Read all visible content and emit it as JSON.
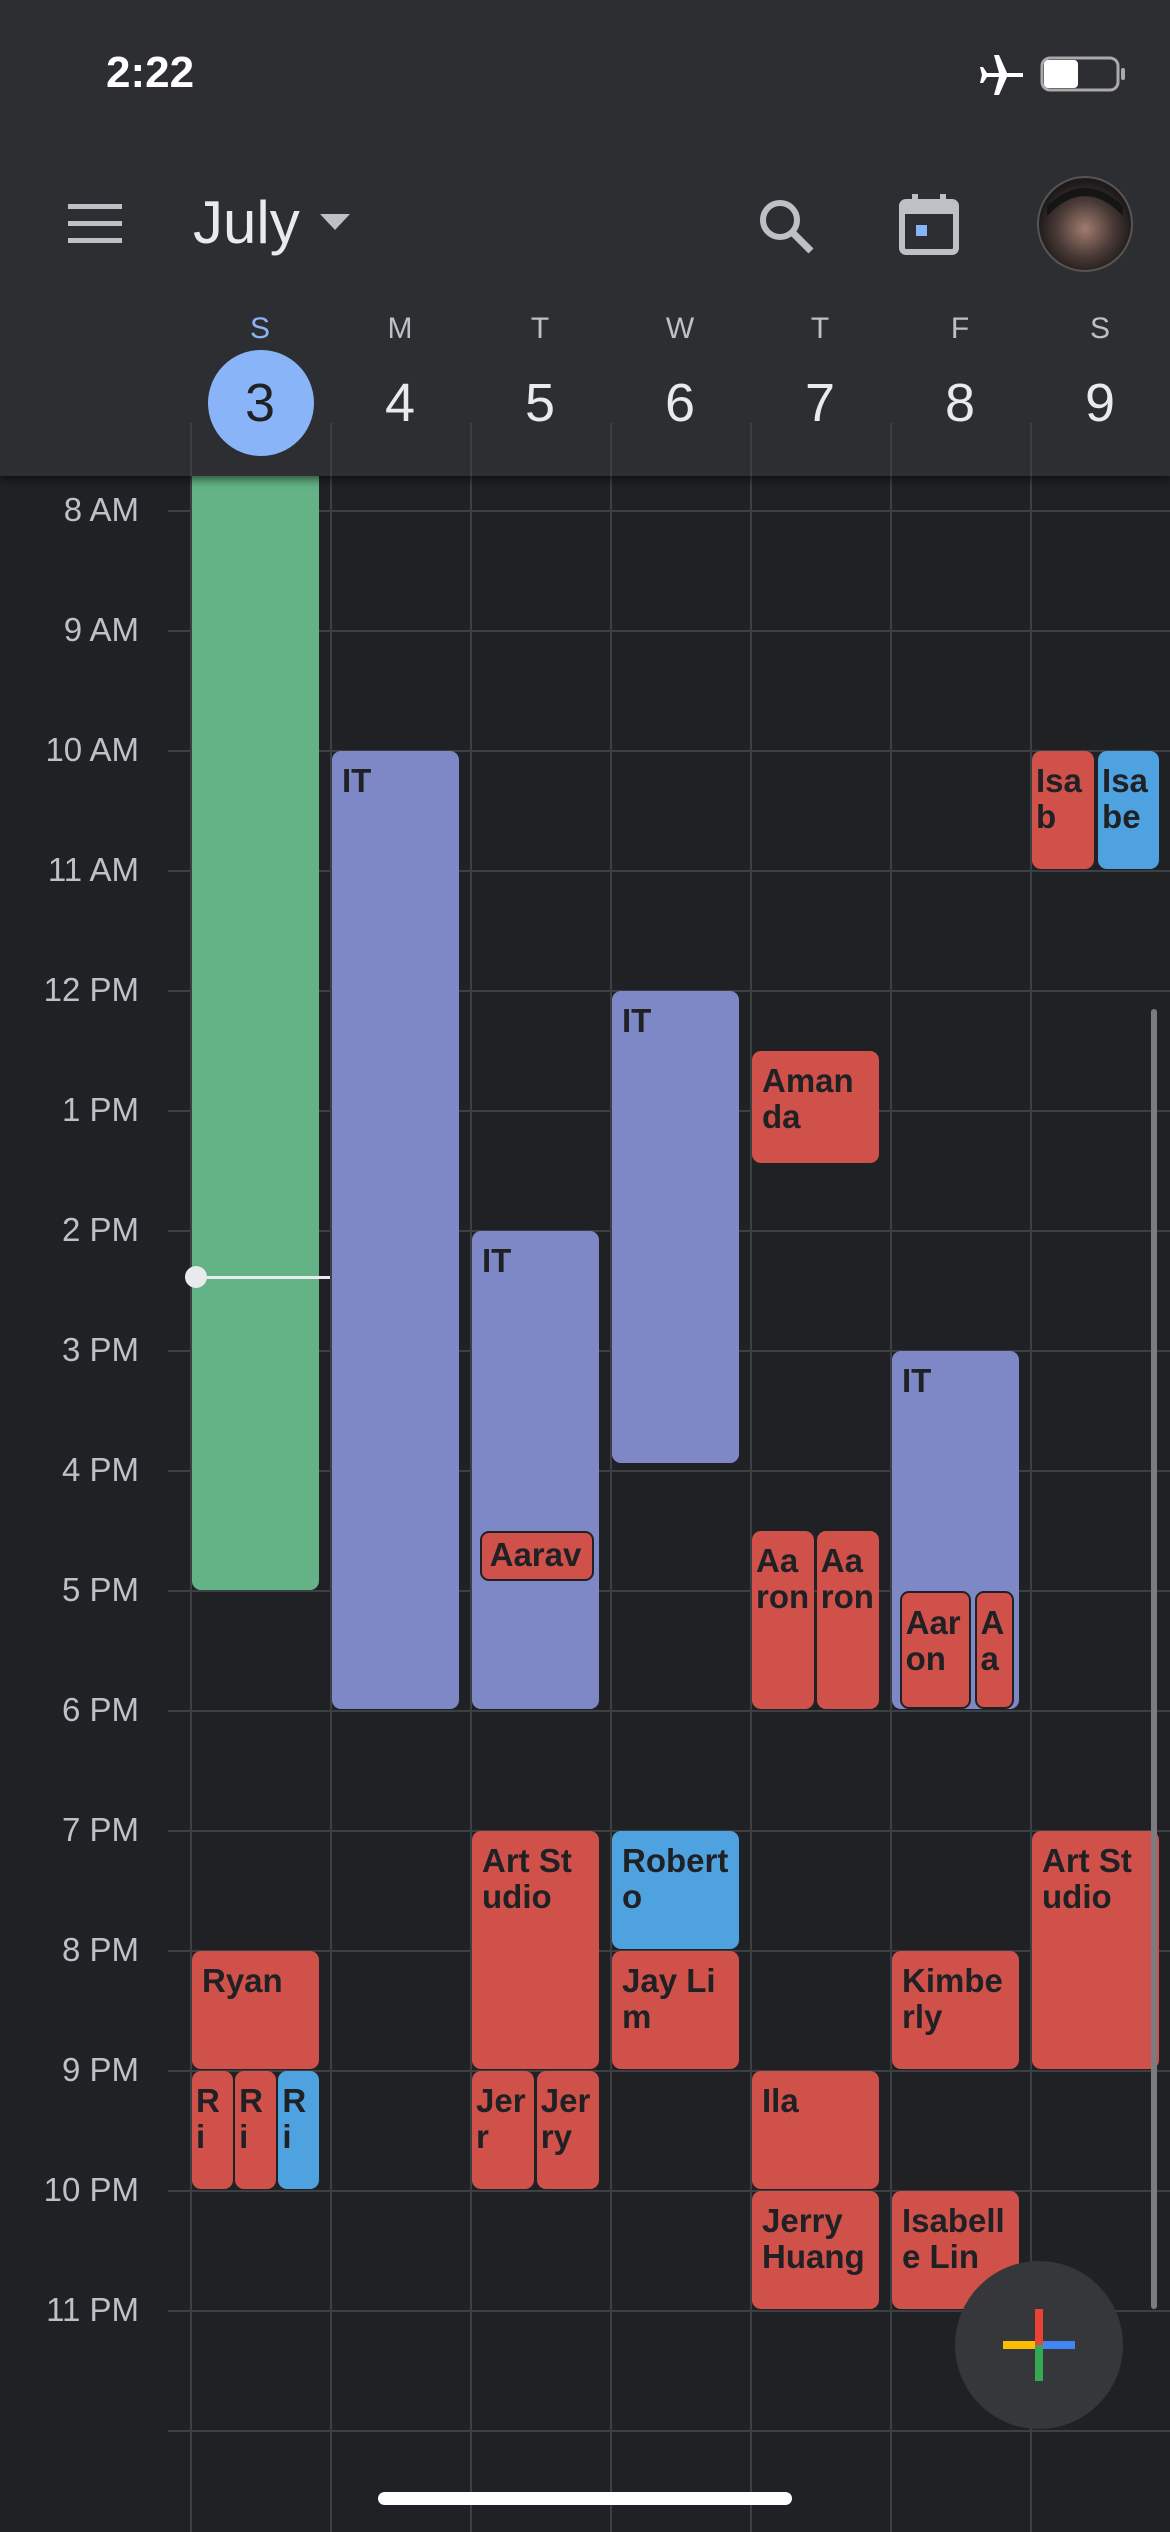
{
  "status_bar": {
    "time": "2:22"
  },
  "header": {
    "month": "July"
  },
  "days": [
    {
      "letter": "S",
      "date": "3"
    },
    {
      "letter": "M",
      "date": "4"
    },
    {
      "letter": "T",
      "date": "5"
    },
    {
      "letter": "W",
      "date": "6"
    },
    {
      "letter": "T",
      "date": "7"
    },
    {
      "letter": "F",
      "date": "8"
    },
    {
      "letter": "S",
      "date": "9"
    }
  ],
  "hours": [
    "8 AM",
    "9 AM",
    "10 AM",
    "11 AM",
    "12 PM",
    "1 PM",
    "2 PM",
    "3 PM",
    "4 PM",
    "5 PM",
    "6 PM",
    "7 PM",
    "8 PM",
    "9 PM",
    "10 PM",
    "11 PM"
  ],
  "events": [
    {
      "label": "IT"
    },
    {
      "label": "IT"
    },
    {
      "label": "Aarav"
    },
    {
      "label": "IT"
    },
    {
      "label": "Amanda"
    },
    {
      "label": "Aaron"
    },
    {
      "label": "Aaron"
    },
    {
      "label": "IT"
    },
    {
      "label": "Aaron"
    },
    {
      "label": "Aa"
    },
    {
      "label": "Isab"
    },
    {
      "label": "Isabe"
    },
    {
      "label": "Roberto"
    },
    {
      "label": "Art Studio"
    },
    {
      "label": "Art Studio"
    },
    {
      "label": "Ryan"
    },
    {
      "label": "Jay Lim"
    },
    {
      "label": "Kimberly"
    },
    {
      "label": "Ri"
    },
    {
      "label": "Ri"
    },
    {
      "label": "Ri"
    },
    {
      "label": "Jerr"
    },
    {
      "label": "Jerry"
    },
    {
      "label": "Ila"
    },
    {
      "label": "Jerry Huang"
    },
    {
      "label": "Isabelle Lin"
    }
  ]
}
